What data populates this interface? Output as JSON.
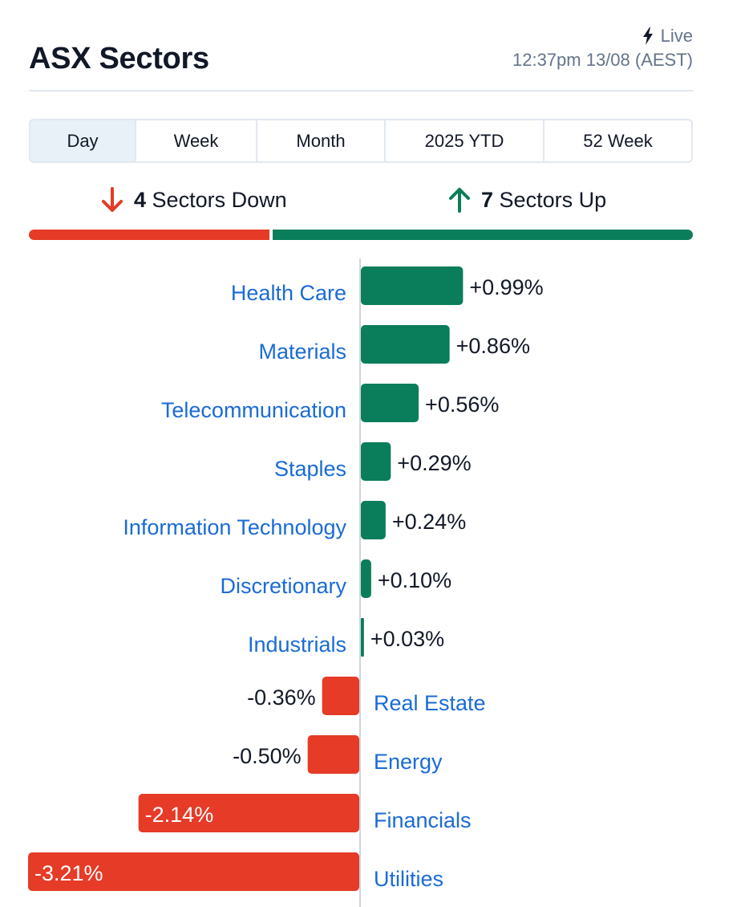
{
  "header": {
    "title": "ASX Sectors",
    "live_label": "Live",
    "timestamp": "12:37pm 13/08 (AEST)"
  },
  "tabs": [
    {
      "label": "Day",
      "active": true
    },
    {
      "label": "Week",
      "active": false
    },
    {
      "label": "Month",
      "active": false
    },
    {
      "label": "2025 YTD",
      "active": false
    },
    {
      "label": "52 Week",
      "active": false
    }
  ],
  "summary": {
    "down_count": "4",
    "down_label": "Sectors Down",
    "up_count": "7",
    "up_label": "Sectors Up"
  },
  "colors": {
    "up": "#0a7d5a",
    "down": "#e53b27",
    "link": "#1a6bd6"
  },
  "chart_data": {
    "type": "bar",
    "orientation": "horizontal-diverging",
    "title": "",
    "xlabel": "",
    "ylabel": "",
    "xlim": [
      -3.21,
      3.21
    ],
    "categories": [
      "Health Care",
      "Materials",
      "Telecommunication",
      "Staples",
      "Information Technology",
      "Discretionary",
      "Industrials",
      "Real Estate",
      "Energy",
      "Financials",
      "Utilities"
    ],
    "values": [
      0.99,
      0.86,
      0.56,
      0.29,
      0.24,
      0.1,
      0.03,
      -0.36,
      -0.5,
      -2.14,
      -3.21
    ],
    "value_labels": [
      "+0.99%",
      "+0.86%",
      "+0.56%",
      "+0.29%",
      "+0.24%",
      "+0.10%",
      "+0.03%",
      "-0.36%",
      "-0.50%",
      "-2.14%",
      "-3.21%"
    ],
    "grid": false,
    "legend": "none"
  }
}
